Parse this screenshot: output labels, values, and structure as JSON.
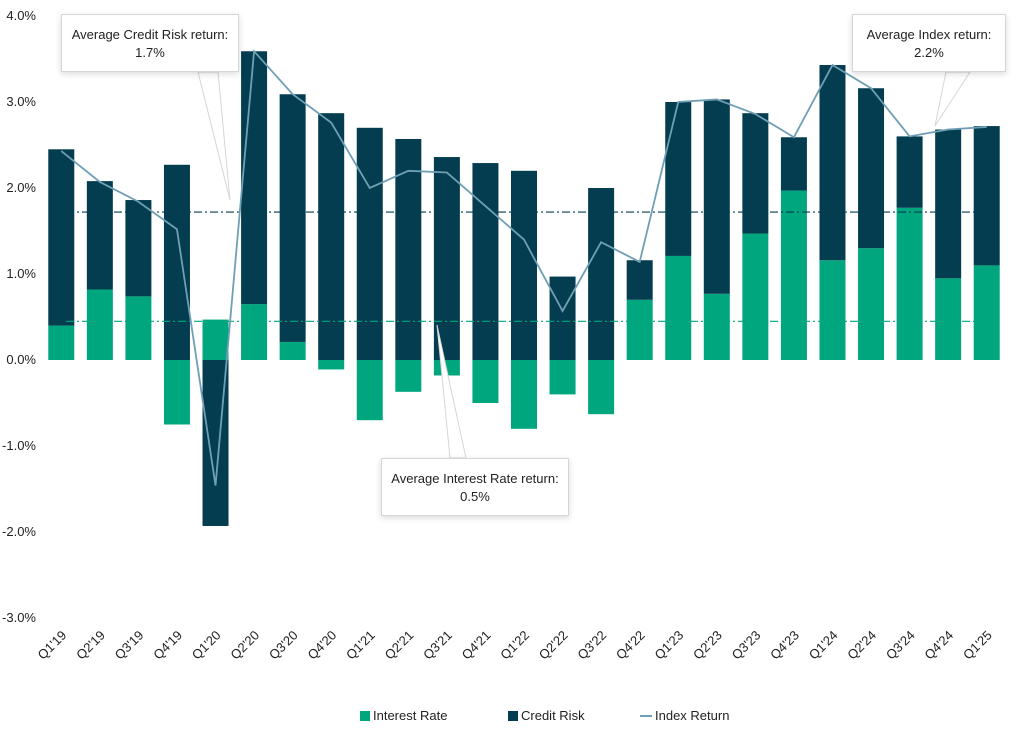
{
  "chart_data": {
    "type": "bar",
    "stacked": true,
    "title": "",
    "xlabel": "",
    "ylabel": "",
    "ylim": [
      -3.0,
      4.0
    ],
    "yticks": [
      "4.0%",
      "3.0%",
      "2.0%",
      "1.0%",
      "0.0%",
      "-1.0%",
      "-2.0%",
      "-3.0%"
    ],
    "ytick_values": [
      4,
      3,
      2,
      1,
      0,
      -1,
      -2,
      -3
    ],
    "categories": [
      "Q1'19",
      "Q2'19",
      "Q3'19",
      "Q4'19",
      "Q1'20",
      "Q2'20",
      "Q3'20",
      "Q4'20",
      "Q1'21",
      "Q2'21",
      "Q3'21",
      "Q4'21",
      "Q1'22",
      "Q2'22",
      "Q3'22",
      "Q4'22",
      "Q1'23",
      "Q2'23",
      "Q3'23",
      "Q4'23",
      "Q1'24",
      "Q2'24",
      "Q3'24",
      "Q4'24",
      "Q1'25"
    ],
    "series": [
      {
        "name": "Interest Rate",
        "kind": "bar",
        "color": "#00a67e",
        "values": [
          0.4,
          0.82,
          0.74,
          -0.75,
          0.47,
          0.65,
          0.21,
          -0.11,
          -0.7,
          -0.37,
          -0.18,
          -0.5,
          -0.8,
          -0.4,
          -0.63,
          0.7,
          1.21,
          0.77,
          1.47,
          1.97,
          1.16,
          1.3,
          1.77,
          0.95,
          1.1
        ]
      },
      {
        "name": "Credit Risk",
        "kind": "bar",
        "color": "#033d4f",
        "values": [
          2.05,
          1.26,
          1.12,
          2.27,
          -1.93,
          2.94,
          2.88,
          2.87,
          2.7,
          2.57,
          2.36,
          2.29,
          2.2,
          0.97,
          2.0,
          0.46,
          1.79,
          2.26,
          1.4,
          0.62,
          2.27,
          1.86,
          0.83,
          1.73,
          1.62
        ]
      },
      {
        "name": "Index Return",
        "kind": "line",
        "color": "#6f9fb4",
        "values": [
          2.43,
          2.07,
          1.84,
          1.52,
          -1.46,
          3.59,
          3.09,
          2.76,
          2.0,
          2.2,
          2.18,
          1.79,
          1.4,
          0.57,
          1.37,
          1.14,
          3.0,
          3.03,
          2.86,
          2.59,
          3.43,
          3.16,
          2.6,
          2.68,
          2.71
        ]
      }
    ],
    "reference_lines": [
      {
        "name": "avg-credit-risk",
        "value": 1.72,
        "color": "#033d4f",
        "style": "dash-dot"
      },
      {
        "name": "avg-interest-rate",
        "value": 0.45,
        "color": "#00a67e",
        "style": "dash-dot"
      }
    ],
    "annotations": [
      {
        "name": "credit-risk-callout",
        "line1": "Average Credit Risk return:",
        "line2": "1.7%"
      },
      {
        "name": "interest-rate-callout",
        "line1": "Average Interest Rate return:",
        "line2": "0.5%"
      },
      {
        "name": "index-callout",
        "line1": "Average Index return:",
        "line2": "2.2%"
      }
    ],
    "legend": {
      "position": "bottom",
      "items": [
        "Interest Rate",
        "Credit Risk",
        "Index Return"
      ]
    },
    "grid": false
  }
}
